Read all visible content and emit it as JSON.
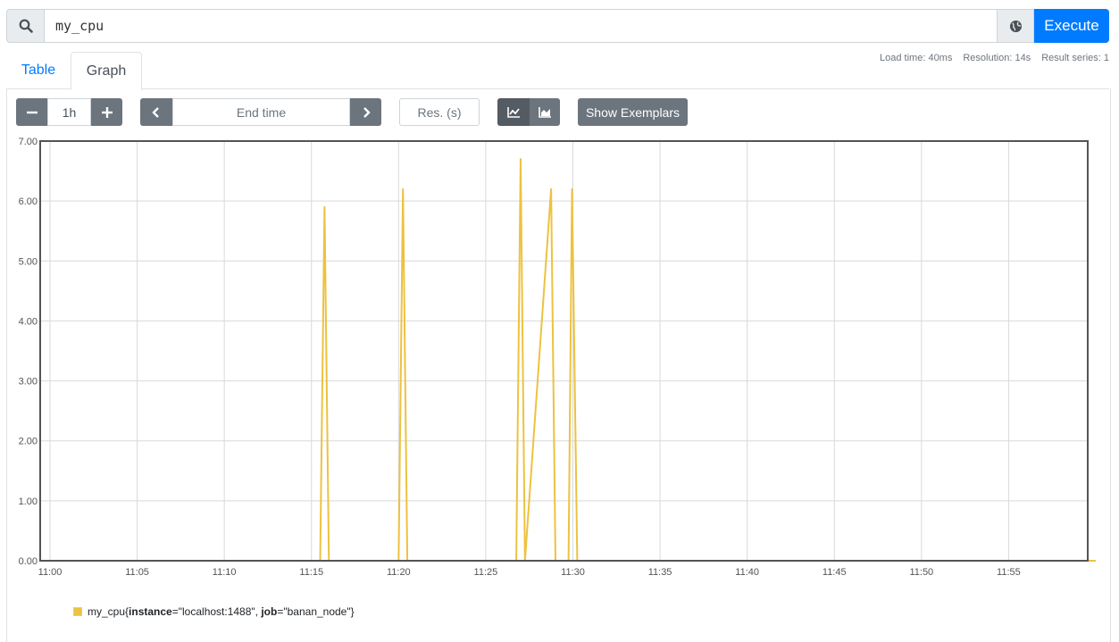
{
  "query": {
    "expression": "my_cpu",
    "execute_label": "Execute"
  },
  "tabs": [
    {
      "label": "Table",
      "active": false
    },
    {
      "label": "Graph",
      "active": true
    }
  ],
  "stats": {
    "load_time": "Load time: 40ms",
    "resolution": "Resolution: 14s",
    "result_series": "Result series: 1"
  },
  "controls": {
    "range_value": "1h",
    "end_time_placeholder": "End time",
    "resolution_placeholder": "Res. (s)",
    "show_exemplars_label": "Show Exemplars"
  },
  "icons": {
    "search": "search-icon",
    "globe": "globe-icon",
    "minus": "minus-icon",
    "plus": "plus-icon",
    "prev": "chevron-left-icon",
    "next": "chevron-right-icon",
    "line_mode": "line-chart-icon",
    "stacked_mode": "area-chart-icon"
  },
  "colors": {
    "accent": "#007bff",
    "series": "#edc240",
    "button": "#6c757d"
  },
  "chart_data": {
    "type": "line",
    "title": "",
    "xlabel": "",
    "ylabel": "",
    "x_ticks": [
      "11:00",
      "11:05",
      "11:10",
      "11:15",
      "11:20",
      "11:25",
      "11:30",
      "11:35",
      "11:40",
      "11:45",
      "11:50",
      "11:55"
    ],
    "y_ticks": [
      "0.00",
      "1.00",
      "2.00",
      "3.00",
      "4.00",
      "5.00",
      "6.00",
      "7.00"
    ],
    "ylim": [
      0,
      7
    ],
    "xlim_minutes": [
      0,
      60
    ],
    "grid": true,
    "series": [
      {
        "name": "my_cpu",
        "labels": {
          "instance": "localhost:1488",
          "job": "banan_node"
        },
        "points": [
          [
            0,
            0
          ],
          [
            15.5,
            0
          ],
          [
            15.75,
            5.9
          ],
          [
            16.0,
            0
          ],
          [
            20.0,
            0
          ],
          [
            20.25,
            6.2
          ],
          [
            20.5,
            0
          ],
          [
            26.75,
            0
          ],
          [
            27.0,
            6.7
          ],
          [
            27.25,
            0
          ],
          [
            28.75,
            6.2
          ],
          [
            29.0,
            0
          ],
          [
            29.75,
            0
          ],
          [
            29.95,
            6.2
          ],
          [
            30.25,
            0
          ],
          [
            60,
            0
          ]
        ]
      }
    ],
    "legend": {
      "metric": "my_cpu",
      "instance_key": "instance",
      "instance_val": "\"localhost:1488\"",
      "job_key": "job",
      "job_val": "\"banan_node\""
    }
  }
}
